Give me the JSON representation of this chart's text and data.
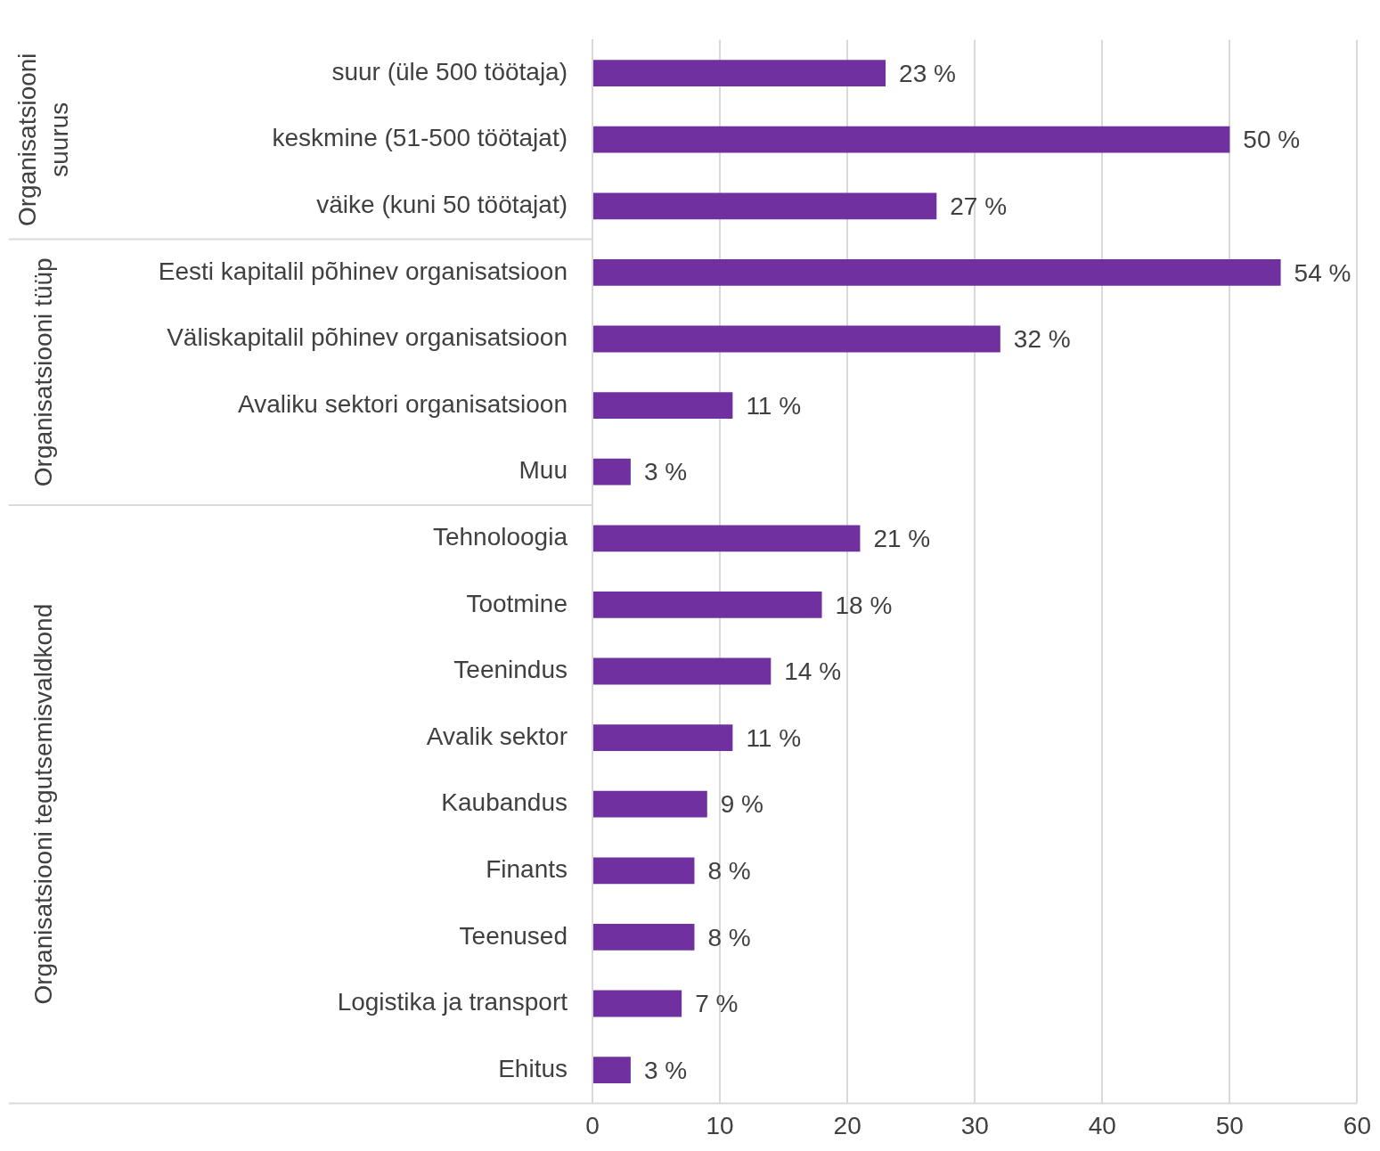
{
  "chart_data": {
    "type": "bar",
    "orientation": "horizontal",
    "categories": [
      "suur (üle 500 töötaja)",
      "keskmine (51-500 töötajat)",
      "väike (kuni 50 töötajat)",
      "Eesti kapitalil põhinev organisatsioon",
      "Väliskapitalil põhinev organisatsioon",
      "Avaliku sektori organisatsioon",
      "Muu",
      "Tehnoloogia",
      "Tootmine",
      "Teenindus",
      "Avalik sektor",
      "Kaubandus",
      "Finants",
      "Teenused",
      "Logistika ja transport",
      "Ehitus"
    ],
    "values": [
      23,
      50,
      27,
      54,
      32,
      11,
      3,
      21,
      18,
      14,
      11,
      9,
      8,
      8,
      7,
      3
    ],
    "value_labels": [
      "23 %",
      "50 %",
      "27 %",
      "54 %",
      "32 %",
      "11 %",
      "3 %",
      "21 %",
      "18 %",
      "14 %",
      "11 %",
      "9 %",
      "8 %",
      "8 %",
      "7 %",
      "3 %"
    ],
    "color": "#7030a0",
    "xlim": [
      0,
      60
    ],
    "xticks": [
      0,
      10,
      20,
      30,
      40,
      50,
      60
    ],
    "grid": "x",
    "legend": false,
    "annotations": [
      "Organisatsiooni suurus",
      "Organisatsiooni tüüp",
      "Organisatsiooni tegutsemisvaldkond"
    ]
  }
}
